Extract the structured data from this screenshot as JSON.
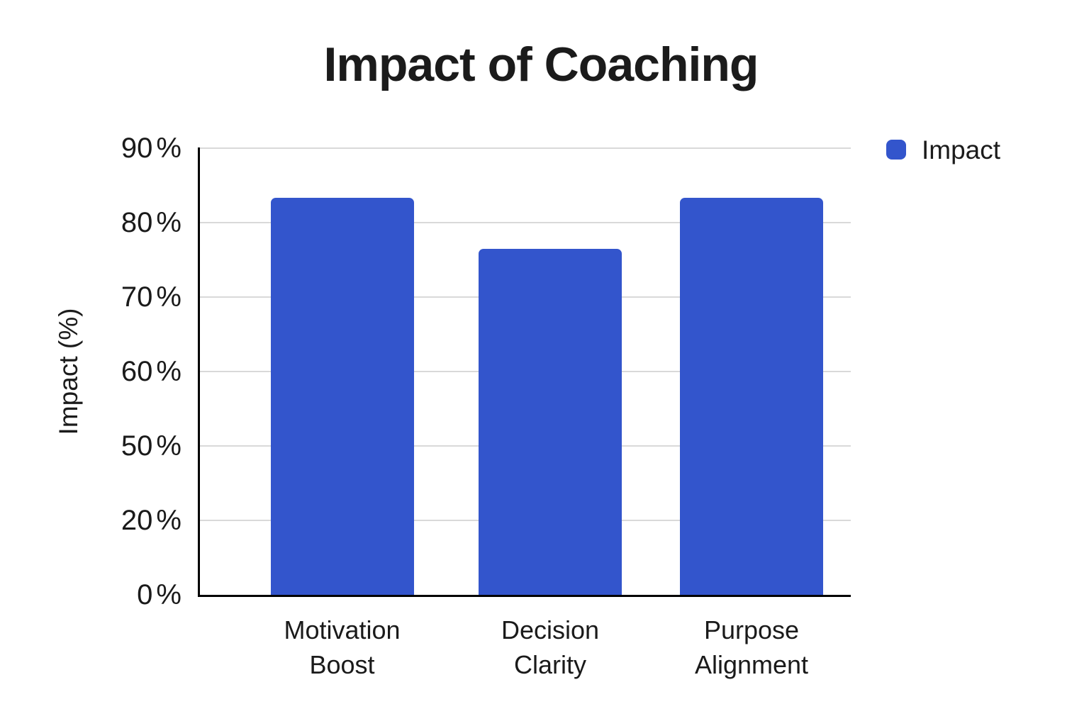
{
  "chart_data": {
    "type": "bar",
    "title": "Impact of Coaching",
    "categories": [
      "Motivation Boost",
      "Decision Clarity",
      "Purpose Alignment"
    ],
    "category_lines": [
      [
        "Motivation",
        "Boost"
      ],
      [
        "Decision",
        "Clarity"
      ],
      [
        "Purpose",
        "Alignment"
      ]
    ],
    "series": [
      {
        "name": "Impact",
        "values": [
          83.3,
          76.5,
          83.3
        ]
      }
    ],
    "xlabel": "",
    "ylabel": "Impact (%)",
    "y_ticks": [
      0,
      20,
      50,
      60,
      70,
      80,
      90
    ],
    "y_tick_suffix": "%",
    "y_axis_rendering": "tick labels evenly spaced as rendered (non-linear jump between 0, 20 and 50)",
    "grid": true,
    "legend_position": "top-right",
    "colors": {
      "bar": "#3355CC",
      "gridline": "#D9D9D9",
      "axis": "#000000",
      "text": "#1A1A1A"
    }
  }
}
